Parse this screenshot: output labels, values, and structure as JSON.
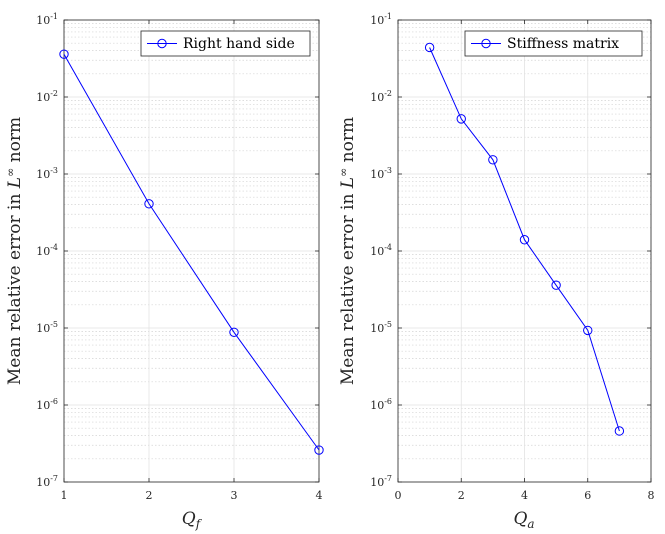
{
  "chart_data": [
    {
      "type": "line",
      "xscale": "linear",
      "yscale": "log",
      "xlim": [
        1,
        4
      ],
      "ylim": [
        1e-07,
        0.1
      ],
      "xticks": [
        1,
        2,
        3,
        4
      ],
      "xticklabels": [
        "1",
        "2",
        "3",
        "4"
      ],
      "yticks": [
        1e-07,
        1e-06,
        1e-05,
        0.0001,
        0.001,
        0.01,
        0.1
      ],
      "yticklabels": [
        {
          "base": "10",
          "exp": "-7"
        },
        {
          "base": "10",
          "exp": "-6"
        },
        {
          "base": "10",
          "exp": "-5"
        },
        {
          "base": "10",
          "exp": "-4"
        },
        {
          "base": "10",
          "exp": "-3"
        },
        {
          "base": "10",
          "exp": "-2"
        },
        {
          "base": "10",
          "exp": "-1"
        }
      ],
      "xlabel": {
        "main": "Q",
        "sub": "f"
      },
      "ylabel": {
        "pre": "Mean relative error in ",
        "var": "L",
        "sup": "∞",
        "post": " norm"
      },
      "grid": true,
      "legend_position": "top-right",
      "series": [
        {
          "name": "Right hand side",
          "color": "#0000ff",
          "marker": "circle",
          "x": [
            1,
            2,
            3,
            4
          ],
          "y": [
            0.036,
            0.00041,
            8.8e-06,
            2.6e-07
          ]
        }
      ]
    },
    {
      "type": "line",
      "xscale": "linear",
      "yscale": "log",
      "xlim": [
        0,
        8
      ],
      "ylim": [
        1e-07,
        0.1
      ],
      "xticks": [
        0,
        2,
        4,
        6,
        8
      ],
      "xticklabels": [
        "0",
        "2",
        "4",
        "6",
        "8"
      ],
      "yticks": [
        1e-07,
        1e-06,
        1e-05,
        0.0001,
        0.001,
        0.01,
        0.1
      ],
      "yticklabels": [
        {
          "base": "10",
          "exp": "-7"
        },
        {
          "base": "10",
          "exp": "-6"
        },
        {
          "base": "10",
          "exp": "-5"
        },
        {
          "base": "10",
          "exp": "-4"
        },
        {
          "base": "10",
          "exp": "-3"
        },
        {
          "base": "10",
          "exp": "-2"
        },
        {
          "base": "10",
          "exp": "-1"
        }
      ],
      "xlabel": {
        "main": "Q",
        "sub": "a"
      },
      "ylabel": {
        "pre": "Mean relative error in ",
        "var": "L",
        "sup": "∞",
        "post": " norm"
      },
      "grid": true,
      "legend_position": "top-right",
      "series": [
        {
          "name": "Stiffness matrix",
          "color": "#0000ff",
          "marker": "circle",
          "x": [
            1,
            2,
            3,
            4,
            5,
            6,
            7
          ],
          "y": [
            0.044,
            0.0052,
            0.00153,
            0.00014,
            3.6e-05,
            9.3e-06,
            4.6e-07
          ]
        }
      ]
    }
  ]
}
